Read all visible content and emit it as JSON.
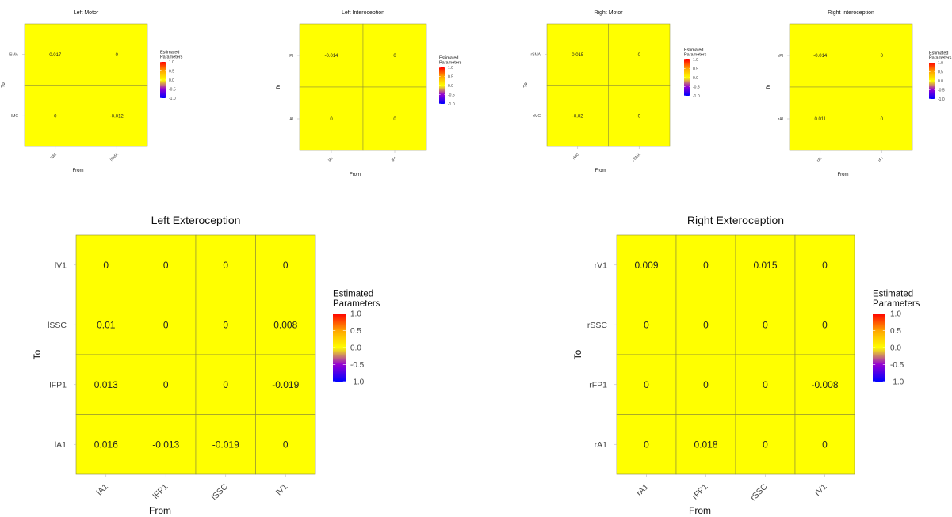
{
  "legend": {
    "title_line1": "Estimated",
    "title_line2": "Parameters",
    "ticks": [
      "1.0",
      "0.5",
      "0.0",
      "-0.5",
      "-1.0"
    ],
    "colors": {
      "high": "#ff0000",
      "mid_high": "#ffa500",
      "mid": "#ffff00",
      "mid_low": "#9400d3",
      "low": "#0000ff"
    }
  },
  "cell_color": "#ffff00",
  "chart_data": [
    {
      "type": "heatmap",
      "title": "Left Motor",
      "xlabel": "From",
      "ylabel": "To",
      "x_categories": [
        "lMC",
        "lSMA"
      ],
      "y_categories": [
        "lSMA",
        "lMC"
      ],
      "values": [
        [
          0.017,
          0
        ],
        [
          0,
          -0.012
        ]
      ],
      "labels": [
        [
          "0.017",
          "0"
        ],
        [
          "0",
          "-0.012"
        ]
      ],
      "color_range": [
        -1.0,
        1.0
      ]
    },
    {
      "type": "heatmap",
      "title": "Left Interoception",
      "xlabel": "From",
      "ylabel": "To",
      "x_categories": [
        "lAI",
        "lPI"
      ],
      "y_categories": [
        "lPI",
        "lAI"
      ],
      "values": [
        [
          -0.014,
          0
        ],
        [
          0,
          0
        ]
      ],
      "labels": [
        [
          "-0.014",
          "0"
        ],
        [
          "0",
          "0"
        ]
      ],
      "color_range": [
        -1.0,
        1.0
      ]
    },
    {
      "type": "heatmap",
      "title": "Right Motor",
      "xlabel": "From",
      "ylabel": "To",
      "x_categories": [
        "rMC",
        "rSMA"
      ],
      "y_categories": [
        "rSMA",
        "rMC"
      ],
      "values": [
        [
          0.015,
          0
        ],
        [
          -0.02,
          0
        ]
      ],
      "labels": [
        [
          "0.015",
          "0"
        ],
        [
          "-0.02",
          "0"
        ]
      ],
      "color_range": [
        -1.0,
        1.0
      ]
    },
    {
      "type": "heatmap",
      "title": "Right Interoception",
      "xlabel": "From",
      "ylabel": "To",
      "x_categories": [
        "rAI",
        "rPI"
      ],
      "y_categories": [
        "rPI",
        "rAI"
      ],
      "values": [
        [
          -0.014,
          0
        ],
        [
          0.011,
          0
        ]
      ],
      "labels": [
        [
          "-0.014",
          "0"
        ],
        [
          "0.011",
          "0"
        ]
      ],
      "color_range": [
        -1.0,
        1.0
      ]
    },
    {
      "type": "heatmap",
      "title": "Left Exteroception",
      "xlabel": "From",
      "ylabel": "To",
      "x_categories": [
        "lA1",
        "lFP1",
        "lSSC",
        "lV1"
      ],
      "y_categories": [
        "lV1",
        "lSSC",
        "lFP1",
        "lA1"
      ],
      "values": [
        [
          0,
          0,
          0,
          0
        ],
        [
          0.01,
          0,
          0,
          0.008
        ],
        [
          0.013,
          0,
          0,
          -0.019
        ],
        [
          0.016,
          -0.013,
          -0.019,
          0
        ]
      ],
      "labels": [
        [
          "0",
          "0",
          "0",
          "0"
        ],
        [
          "0.01",
          "0",
          "0",
          "0.008"
        ],
        [
          "0.013",
          "0",
          "0",
          "-0.019"
        ],
        [
          "0.016",
          "-0.013",
          "-0.019",
          "0"
        ]
      ],
      "color_range": [
        -1.0,
        1.0
      ]
    },
    {
      "type": "heatmap",
      "title": "Right Exteroception",
      "xlabel": "From",
      "ylabel": "To",
      "x_categories": [
        "rA1",
        "rFP1",
        "rSSC",
        "rV1"
      ],
      "y_categories": [
        "rV1",
        "rSSC",
        "rFP1",
        "rA1"
      ],
      "values": [
        [
          0.009,
          0,
          0.015,
          0
        ],
        [
          0,
          0,
          0,
          0
        ],
        [
          0,
          0,
          0,
          -0.008
        ],
        [
          0,
          0.018,
          0,
          0
        ]
      ],
      "labels": [
        [
          "0.009",
          "0",
          "0.015",
          "0"
        ],
        [
          "0",
          "0",
          "0",
          "0"
        ],
        [
          "0",
          "0",
          "0",
          "-0.008"
        ],
        [
          "0",
          "0.018",
          "0",
          "0"
        ]
      ],
      "color_range": [
        -1.0,
        1.0
      ]
    }
  ]
}
